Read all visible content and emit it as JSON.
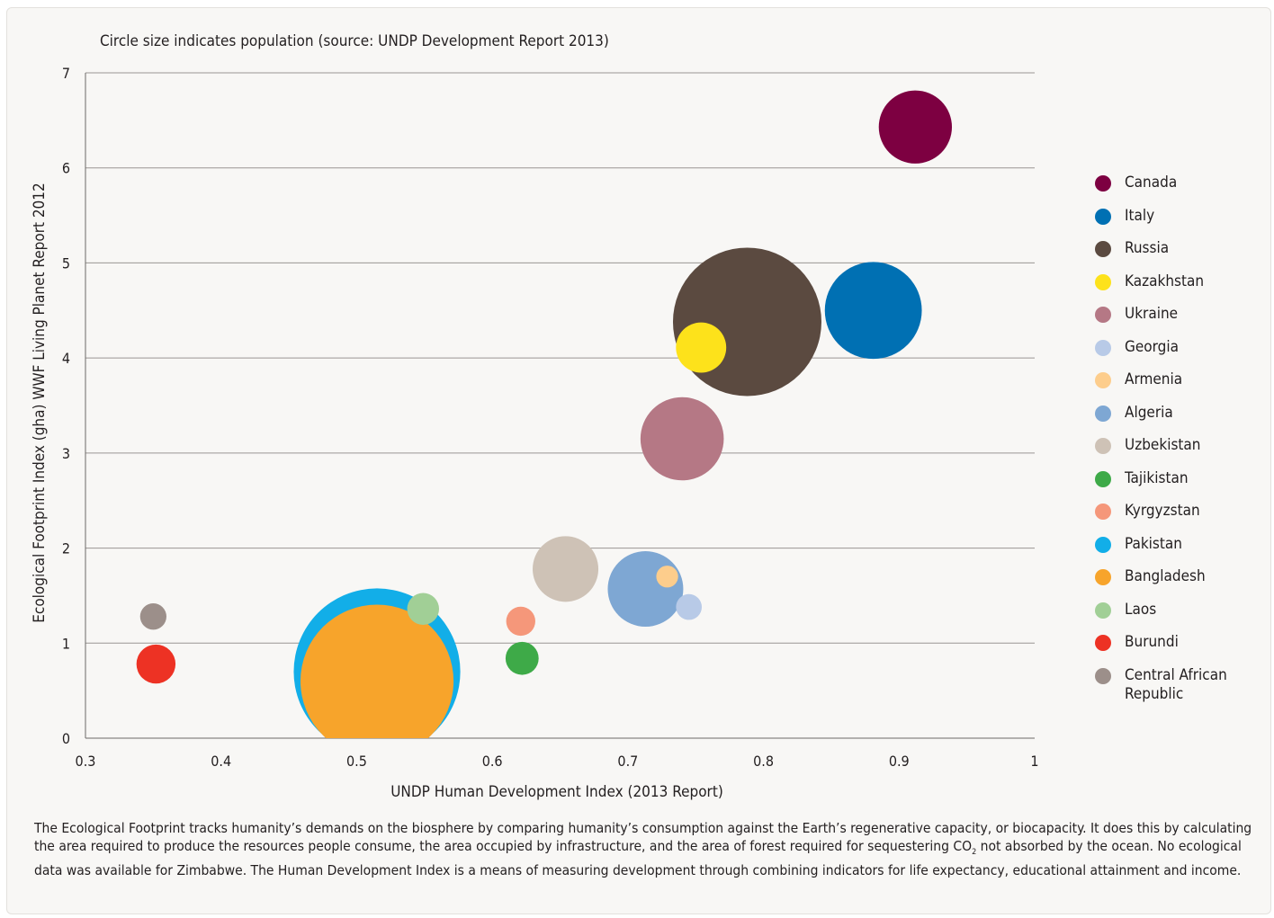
{
  "chart_data": {
    "type": "scatter",
    "subtitle": "Circle size indicates population (source: UNDP Development Report 2013)",
    "xlabel": "UNDP Human Development Index (2013 Report)",
    "ylabel": "Ecological Footprint Index (gha) WWF Living Planet Report 2012",
    "xlim": [
      0.3,
      1
    ],
    "ylim": [
      0,
      7
    ],
    "x_ticks": [
      "0.3",
      "0.4",
      "0.5",
      "0.6",
      "0.7",
      "0.8",
      "0.9",
      "1"
    ],
    "y_ticks": [
      "0",
      "1",
      "2",
      "3",
      "4",
      "5",
      "6",
      "7"
    ],
    "grid": "horizontal",
    "legend_position": "right",
    "series": [
      {
        "name": "Canada",
        "color": "#7d0041",
        "x": 0.912,
        "y": 6.43,
        "population": 34.7
      },
      {
        "name": "Italy",
        "color": "#0070b3",
        "x": 0.881,
        "y": 4.5,
        "population": 61
      },
      {
        "name": "Russia",
        "color": "#5b4a40",
        "x": 0.788,
        "y": 4.38,
        "population": 143
      },
      {
        "name": "Kazakhstan",
        "color": "#fde21b",
        "x": 0.754,
        "y": 4.11,
        "population": 16.4
      },
      {
        "name": "Ukraine",
        "color": "#b57885",
        "x": 0.74,
        "y": 3.15,
        "population": 45
      },
      {
        "name": "Georgia",
        "color": "#b8cae7",
        "x": 0.745,
        "y": 1.38,
        "population": 4.3
      },
      {
        "name": "Armenia",
        "color": "#fdcd8c",
        "x": 0.729,
        "y": 1.7,
        "population": 3.1
      },
      {
        "name": "Algeria",
        "color": "#7ea7d3",
        "x": 0.713,
        "y": 1.57,
        "population": 37
      },
      {
        "name": "Uzbekistan",
        "color": "#cec2b6",
        "x": 0.654,
        "y": 1.78,
        "population": 28
      },
      {
        "name": "Tajikistan",
        "color": "#3eaa48",
        "x": 0.622,
        "y": 0.84,
        "population": 7.1
      },
      {
        "name": "Kyrgyzstan",
        "color": "#f5977a",
        "x": 0.621,
        "y": 1.23,
        "population": 5.5
      },
      {
        "name": "Pakistan",
        "color": "#12aee8",
        "x": 0.515,
        "y": 0.7,
        "population": 180
      },
      {
        "name": "Bangladesh",
        "color": "#f7a42b",
        "x": 0.515,
        "y": 0.6,
        "population": 152
      },
      {
        "name": "Laos",
        "color": "#a1cf96",
        "x": 0.549,
        "y": 1.36,
        "population": 6.6
      },
      {
        "name": "Burundi",
        "color": "#ed3224",
        "x": 0.352,
        "y": 0.78,
        "population": 9.9
      },
      {
        "name": "Central African Republic",
        "color": "#9c8f8a",
        "x": 0.35,
        "y": 1.28,
        "population": 4.5
      }
    ]
  },
  "caption": {
    "part1": "The Ecological Footprint tracks humanity’s demands on the biosphere by comparing humanity’s consumption against the Earth’s regenerative capacity, or biocapacity. It does this by calculating the area required to produce the resources people consume, the area occupied by infrastructure, and the area of forest required for sequestering CO",
    "sub": "2",
    "part2": " not absorbed by the ocean. No ecological data was available for Zimbabwe. The Human Development Index is a means of measuring development through combining indicators for life expectancy, educational attainment and income."
  }
}
